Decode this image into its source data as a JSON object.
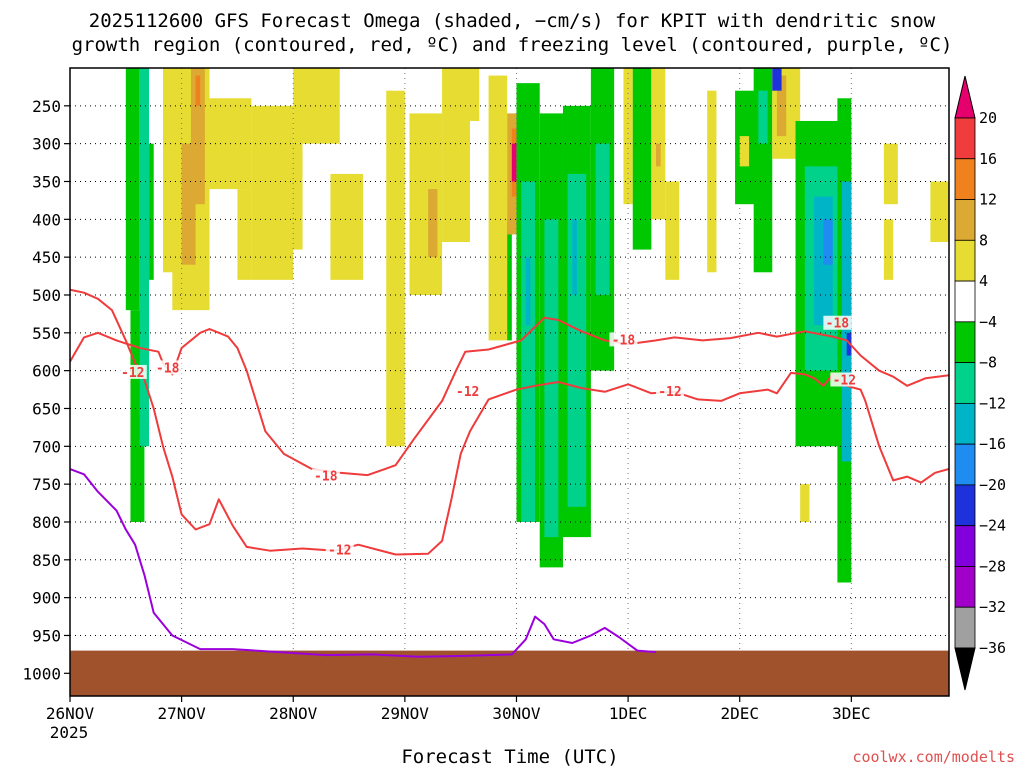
{
  "chart_data": {
    "type": "heatmap",
    "title": [
      "2025112600 GFS Forecast Omega (shaded, −cm/s) for KPIT with dendritic snow",
      "growth region (contoured, red, ºC) and freezing level (contoured, purple, ºC)"
    ],
    "xlabel": "Forecast Time (UTC)",
    "ylabel": "",
    "credit": "coolwx.com/modelts",
    "x_ticks": [
      "26NOV",
      "27NOV",
      "28NOV",
      "29NOV",
      "30NOV",
      "1DEC",
      "2DEC",
      "3DEC"
    ],
    "x_sublabel": "2025",
    "xlim_hours": [
      0,
      189
    ],
    "y_ticks": [
      250,
      300,
      350,
      400,
      450,
      500,
      550,
      600,
      650,
      700,
      750,
      800,
      850,
      900,
      950,
      1000
    ],
    "ylim_hpa": [
      200,
      1030
    ],
    "ground_hpa": 970,
    "colorbar": {
      "labels": [
        "20",
        "16",
        "12",
        "8",
        "4",
        "−4",
        "−8",
        "−12",
        "−16",
        "−20",
        "−24",
        "−28",
        "−32",
        "−36"
      ],
      "top_color": "#e6006e",
      "bottom_color": "#000000",
      "bins": [
        {
          "range": "20+",
          "color": "#e6006e"
        },
        {
          "range": "16 to 20",
          "color": "#f03c3c"
        },
        {
          "range": "12 to 16",
          "color": "#f0821e"
        },
        {
          "range": "8 to 12",
          "color": "#dcaa32"
        },
        {
          "range": "4 to 8",
          "color": "#e6dc32"
        },
        {
          "range": "-4 to 4",
          "color": "#ffffff"
        },
        {
          "range": "-8 to -4",
          "color": "#00c800"
        },
        {
          "range": "-12 to -8",
          "color": "#00d28c"
        },
        {
          "range": "-16 to -12",
          "color": "#00b4c8"
        },
        {
          "range": "-20 to -16",
          "color": "#1e8cf0"
        },
        {
          "range": "-24 to -20",
          "color": "#1e32dc"
        },
        {
          "range": "-28 to -24",
          "color": "#8200dc"
        },
        {
          "range": "-32 to -28",
          "color": "#a000c8"
        },
        {
          "range": "-36 to -32",
          "color": "#a0a0a0"
        },
        {
          "range": "< -36",
          "color": "#000000"
        }
      ]
    },
    "omega_shading": [
      {
        "t0": 12,
        "t1": 15,
        "p0": 200,
        "p1": 520,
        "color": "#00c800"
      },
      {
        "t0": 13,
        "t1": 16,
        "p0": 520,
        "p1": 800,
        "color": "#00c800"
      },
      {
        "t0": 15,
        "t1": 17,
        "p0": 200,
        "p1": 700,
        "color": "#00d28c"
      },
      {
        "t0": 17,
        "t1": 18,
        "p0": 300,
        "p1": 480,
        "color": "#00c800"
      },
      {
        "t0": 20,
        "t1": 26,
        "p0": 200,
        "p1": 470,
        "color": "#e6dc32"
      },
      {
        "t0": 22,
        "t1": 30,
        "p0": 200,
        "p1": 520,
        "color": "#e6dc32"
      },
      {
        "t0": 24,
        "t1": 27,
        "p0": 300,
        "p1": 460,
        "color": "#dcaa32"
      },
      {
        "t0": 26,
        "t1": 29,
        "p0": 200,
        "p1": 380,
        "color": "#dcaa32"
      },
      {
        "t0": 27,
        "t1": 28,
        "p0": 210,
        "p1": 250,
        "color": "#f0821e"
      },
      {
        "t0": 30,
        "t1": 39,
        "p0": 240,
        "p1": 360,
        "color": "#e6dc32"
      },
      {
        "t0": 36,
        "t1": 39,
        "p0": 360,
        "p1": 480,
        "color": "#e6dc32"
      },
      {
        "t0": 39,
        "t1": 48,
        "p0": 250,
        "p1": 480,
        "color": "#e6dc32"
      },
      {
        "t0": 45,
        "t1": 50,
        "p0": 300,
        "p1": 440,
        "color": "#e6dc32"
      },
      {
        "t0": 48,
        "t1": 58,
        "p0": 200,
        "p1": 300,
        "color": "#e6dc32"
      },
      {
        "t0": 56,
        "t1": 63,
        "p0": 340,
        "p1": 480,
        "color": "#e6dc32"
      },
      {
        "t0": 68,
        "t1": 72,
        "p0": 230,
        "p1": 700,
        "color": "#e6dc32"
      },
      {
        "t0": 73,
        "t1": 80,
        "p0": 260,
        "p1": 500,
        "color": "#e6dc32"
      },
      {
        "t0": 77,
        "t1": 79,
        "p0": 360,
        "p1": 450,
        "color": "#dcaa32"
      },
      {
        "t0": 80,
        "t1": 86,
        "p0": 200,
        "p1": 430,
        "color": "#e6dc32"
      },
      {
        "t0": 86,
        "t1": 88,
        "p0": 200,
        "p1": 270,
        "color": "#e6dc32"
      },
      {
        "t0": 90,
        "t1": 94,
        "p0": 210,
        "p1": 560,
        "color": "#e6dc32"
      },
      {
        "t0": 94,
        "t1": 95,
        "p0": 400,
        "p1": 560,
        "color": "#00c800"
      },
      {
        "t0": 94,
        "t1": 96,
        "p0": 260,
        "p1": 420,
        "color": "#dcaa32"
      },
      {
        "t0": 95,
        "t1": 96,
        "p0": 280,
        "p1": 370,
        "color": "#f0821e"
      },
      {
        "t0": 95,
        "t1": 96,
        "p0": 300,
        "p1": 350,
        "color": "#e6006e"
      },
      {
        "t0": 96,
        "t1": 101,
        "p0": 220,
        "p1": 800,
        "color": "#00c800"
      },
      {
        "t0": 97,
        "t1": 100,
        "p0": 350,
        "p1": 800,
        "color": "#00d28c"
      },
      {
        "t0": 98,
        "t1": 99,
        "p0": 450,
        "p1": 540,
        "color": "#00b4c8"
      },
      {
        "t0": 101,
        "t1": 106,
        "p0": 260,
        "p1": 860,
        "color": "#00c800"
      },
      {
        "t0": 102,
        "t1": 105,
        "p0": 400,
        "p1": 820,
        "color": "#00d28c"
      },
      {
        "t0": 106,
        "t1": 112,
        "p0": 250,
        "p1": 820,
        "color": "#00c800"
      },
      {
        "t0": 107,
        "t1": 111,
        "p0": 340,
        "p1": 780,
        "color": "#00d28c"
      },
      {
        "t0": 108,
        "t1": 109,
        "p0": 400,
        "p1": 500,
        "color": "#00b4c8"
      },
      {
        "t0": 112,
        "t1": 117,
        "p0": 200,
        "p1": 600,
        "color": "#00c800"
      },
      {
        "t0": 113,
        "t1": 116,
        "p0": 300,
        "p1": 500,
        "color": "#00d28c"
      },
      {
        "t0": 119,
        "t1": 121,
        "p0": 200,
        "p1": 380,
        "color": "#e6dc32"
      },
      {
        "t0": 121,
        "t1": 125,
        "p0": 200,
        "p1": 440,
        "color": "#00c800"
      },
      {
        "t0": 125,
        "t1": 128,
        "p0": 200,
        "p1": 400,
        "color": "#e6dc32"
      },
      {
        "t0": 126,
        "t1": 127,
        "p0": 300,
        "p1": 330,
        "color": "#dcaa32"
      },
      {
        "t0": 128,
        "t1": 131,
        "p0": 350,
        "p1": 480,
        "color": "#e6dc32"
      },
      {
        "t0": 137,
        "t1": 139,
        "p0": 230,
        "p1": 470,
        "color": "#e6dc32"
      },
      {
        "t0": 143,
        "t1": 148,
        "p0": 230,
        "p1": 380,
        "color": "#00c800"
      },
      {
        "t0": 144,
        "t1": 146,
        "p0": 290,
        "p1": 330,
        "color": "#e6dc32"
      },
      {
        "t0": 147,
        "t1": 151,
        "p0": 200,
        "p1": 470,
        "color": "#00c800"
      },
      {
        "t0": 148,
        "t1": 150,
        "p0": 230,
        "p1": 300,
        "color": "#00d28c"
      },
      {
        "t0": 151,
        "t1": 157,
        "p0": 200,
        "p1": 320,
        "color": "#e6dc32"
      },
      {
        "t0": 152,
        "t1": 154,
        "p0": 210,
        "p1": 290,
        "color": "#dcaa32"
      },
      {
        "t0": 156,
        "t1": 168,
        "p0": 270,
        "p1": 700,
        "color": "#00c800"
      },
      {
        "t0": 158,
        "t1": 166,
        "p0": 330,
        "p1": 600,
        "color": "#00d28c"
      },
      {
        "t0": 160,
        "t1": 164,
        "p0": 370,
        "p1": 540,
        "color": "#00b4c8"
      },
      {
        "t0": 162,
        "t1": 164,
        "p0": 400,
        "p1": 460,
        "color": "#1e8cf0"
      },
      {
        "t0": 165,
        "t1": 168,
        "p0": 240,
        "p1": 880,
        "color": "#00c800"
      },
      {
        "t0": 166,
        "t1": 168,
        "p0": 350,
        "p1": 720,
        "color": "#00b4c8"
      },
      {
        "t0": 167,
        "t1": 168,
        "p0": 550,
        "p1": 580,
        "color": "#1e32dc"
      },
      {
        "t0": 151,
        "t1": 153,
        "p0": 200,
        "p1": 230,
        "color": "#1e32dc"
      },
      {
        "t0": 157,
        "t1": 159,
        "p0": 750,
        "p1": 800,
        "color": "#e6dc32"
      },
      {
        "t0": 175,
        "t1": 177,
        "p0": 400,
        "p1": 480,
        "color": "#e6dc32"
      },
      {
        "t0": 185,
        "t1": 189,
        "p0": 350,
        "p1": 430,
        "color": "#e6dc32"
      },
      {
        "t0": 175,
        "t1": 178,
        "p0": 300,
        "p1": 380,
        "color": "#e6dc32"
      }
    ],
    "contours": [
      {
        "name": "-12 ºC isotherm",
        "color": "#ef3b3b",
        "label": "-12",
        "points": [
          [
            0,
            493
          ],
          [
            3,
            497
          ],
          [
            6,
            505
          ],
          [
            9,
            520
          ],
          [
            12,
            560
          ],
          [
            14,
            590
          ],
          [
            16,
            612
          ],
          [
            18,
            650
          ],
          [
            20,
            700
          ],
          [
            22,
            740
          ],
          [
            24,
            790
          ],
          [
            27,
            810
          ],
          [
            30,
            803
          ],
          [
            32,
            770
          ],
          [
            35,
            805
          ],
          [
            38,
            833
          ],
          [
            43,
            838
          ],
          [
            50,
            835
          ],
          [
            57,
            838
          ],
          [
            62,
            830
          ],
          [
            70,
            843
          ],
          [
            77,
            842
          ],
          [
            80,
            825
          ],
          [
            82,
            770
          ],
          [
            84,
            710
          ],
          [
            86,
            680
          ],
          [
            90,
            638
          ],
          [
            96,
            625
          ],
          [
            100,
            620
          ],
          [
            105,
            615
          ],
          [
            110,
            623
          ],
          [
            115,
            628
          ],
          [
            120,
            618
          ],
          [
            125,
            630
          ],
          [
            130,
            628
          ],
          [
            135,
            638
          ],
          [
            140,
            640
          ],
          [
            144,
            630
          ],
          [
            150,
            625
          ],
          [
            152,
            630
          ],
          [
            155,
            603
          ],
          [
            158,
            605
          ],
          [
            160,
            610
          ],
          [
            162,
            620
          ],
          [
            164,
            605
          ],
          [
            167,
            620
          ],
          [
            170,
            625
          ],
          [
            171,
            640
          ],
          [
            174,
            700
          ],
          [
            177,
            745
          ],
          [
            180,
            740
          ],
          [
            183,
            748
          ],
          [
            186,
            735
          ],
          [
            189,
            730
          ]
        ]
      },
      {
        "name": "-18 ºC isotherm",
        "color": "#ef3b3b",
        "label": "-18",
        "points": [
          [
            0,
            588
          ],
          [
            3,
            556
          ],
          [
            6,
            550
          ],
          [
            10,
            560
          ],
          [
            15,
            570
          ],
          [
            19,
            575
          ],
          [
            20,
            590
          ],
          [
            22,
            605
          ],
          [
            24,
            570
          ],
          [
            28,
            550
          ],
          [
            30,
            545
          ],
          [
            34,
            555
          ],
          [
            36,
            570
          ],
          [
            38,
            600
          ],
          [
            40,
            640
          ],
          [
            42,
            680
          ],
          [
            46,
            710
          ],
          [
            52,
            730
          ],
          [
            58,
            735
          ],
          [
            64,
            738
          ],
          [
            70,
            725
          ],
          [
            74,
            690
          ],
          [
            80,
            640
          ],
          [
            83,
            600
          ],
          [
            85,
            575
          ],
          [
            90,
            572
          ],
          [
            97,
            560
          ],
          [
            102,
            530
          ],
          [
            105,
            533
          ],
          [
            110,
            548
          ],
          [
            115,
            560
          ],
          [
            120,
            565
          ],
          [
            126,
            560
          ],
          [
            130,
            556
          ],
          [
            136,
            560
          ],
          [
            142,
            557
          ],
          [
            148,
            550
          ],
          [
            152,
            555
          ],
          [
            158,
            548
          ],
          [
            164,
            555
          ],
          [
            167,
            560
          ],
          [
            170,
            580
          ],
          [
            174,
            600
          ],
          [
            177,
            608
          ],
          [
            180,
            620
          ],
          [
            184,
            610
          ],
          [
            189,
            606
          ]
        ]
      },
      {
        "name": "freezing level",
        "color": "#9b00dc",
        "label": "",
        "points": [
          [
            0,
            730
          ],
          [
            3,
            737
          ],
          [
            6,
            760
          ],
          [
            10,
            785
          ],
          [
            12,
            810
          ],
          [
            14,
            830
          ],
          [
            16,
            870
          ],
          [
            18,
            920
          ],
          [
            22,
            950
          ],
          [
            28,
            968
          ],
          [
            35,
            968
          ],
          [
            45,
            972
          ],
          [
            55,
            976
          ],
          [
            65,
            975
          ],
          [
            75,
            978
          ],
          [
            85,
            977
          ],
          [
            95,
            975
          ],
          [
            98,
            955
          ],
          [
            100,
            925
          ],
          [
            102,
            935
          ],
          [
            104,
            955
          ],
          [
            108,
            960
          ],
          [
            112,
            950
          ],
          [
            115,
            940
          ],
          [
            118,
            952
          ],
          [
            122,
            970
          ],
          [
            126,
            972
          ]
        ]
      }
    ],
    "contour_labels": [
      {
        "text": "-12",
        "t": 13.5,
        "p": 603,
        "color": "#ef3b3b"
      },
      {
        "text": "-18",
        "t": 21,
        "p": 597,
        "color": "#ef3b3b"
      },
      {
        "text": "-18",
        "t": 55,
        "p": 740,
        "color": "#ef3b3b"
      },
      {
        "text": "-12",
        "t": 58,
        "p": 838,
        "color": "#ef3b3b"
      },
      {
        "text": "-12",
        "t": 85.5,
        "p": 628,
        "color": "#ef3b3b"
      },
      {
        "text": "-18",
        "t": 119,
        "p": 560,
        "color": "#ef3b3b"
      },
      {
        "text": "-12",
        "t": 129,
        "p": 628,
        "color": "#ef3b3b"
      },
      {
        "text": "-18",
        "t": 165,
        "p": 538,
        "color": "#ef3b3b"
      },
      {
        "text": "-12",
        "t": 166.5,
        "p": 613,
        "color": "#ef3b3b"
      }
    ]
  }
}
